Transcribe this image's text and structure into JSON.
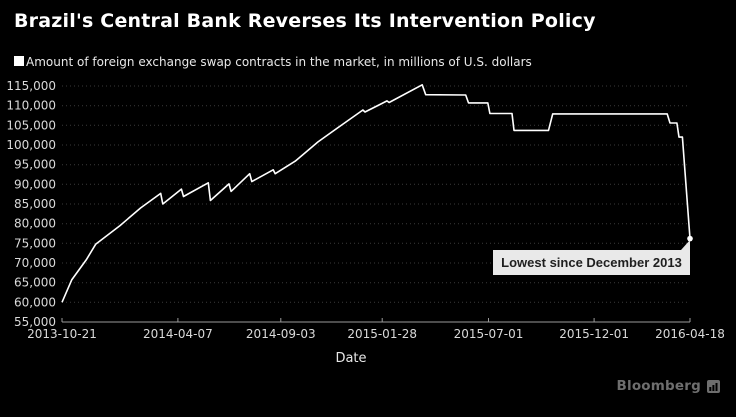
{
  "header": {
    "title": "Brazil's Central Bank Reverses Its Intervention Policy"
  },
  "footer": {
    "brand": "Bloomberg"
  },
  "chart_data": {
    "type": "line",
    "title": "Brazil's Central Bank Reverses Its Intervention Policy",
    "xlabel": "Date",
    "ylabel": "",
    "grid": true,
    "legend_position": "top-left",
    "xlim": [
      "2013-10-21",
      "2016-04-18"
    ],
    "ylim": [
      55000,
      115000
    ],
    "x_ticks": [
      "2013-10-21",
      "2014-04-07",
      "2014-09-03",
      "2015-01-28",
      "2015-07-01",
      "2015-12-01",
      "2016-04-18"
    ],
    "y_ticks": [
      55000,
      60000,
      65000,
      70000,
      75000,
      80000,
      85000,
      90000,
      95000,
      100000,
      105000,
      110000,
      115000
    ],
    "annotation": {
      "text": "Lowest since December 2013",
      "x": "2016-04-18",
      "y": 76200
    },
    "series": [
      {
        "name": "Amount of foreign exchange swap contracts in the market, in millions of U.S. dollars",
        "points": [
          [
            "2013-10-21",
            60000
          ],
          [
            "2013-11-04",
            65700
          ],
          [
            "2013-11-25",
            70800
          ],
          [
            "2013-12-09",
            74800
          ],
          [
            "2014-01-13",
            79500
          ],
          [
            "2014-02-12",
            84000
          ],
          [
            "2014-03-13",
            87700
          ],
          [
            "2014-03-16",
            85000
          ],
          [
            "2014-04-12",
            88800
          ],
          [
            "2014-04-15",
            86900
          ],
          [
            "2014-05-21",
            90400
          ],
          [
            "2014-05-24",
            85900
          ],
          [
            "2014-06-20",
            90100
          ],
          [
            "2014-06-23",
            88200
          ],
          [
            "2014-07-20",
            92700
          ],
          [
            "2014-07-23",
            90700
          ],
          [
            "2014-08-23",
            93700
          ],
          [
            "2014-08-26",
            92700
          ],
          [
            "2014-09-24",
            95900
          ],
          [
            "2014-10-27",
            100800
          ],
          [
            "2014-11-28",
            104800
          ],
          [
            "2014-12-31",
            108900
          ],
          [
            "2015-01-03",
            108400
          ],
          [
            "2015-02-04",
            111200
          ],
          [
            "2015-02-07",
            110800
          ],
          [
            "2015-03-27",
            115300
          ],
          [
            "2015-04-01",
            112800
          ],
          [
            "2015-05-29",
            112700
          ],
          [
            "2015-06-02",
            110700
          ],
          [
            "2015-06-30",
            110700
          ],
          [
            "2015-07-03",
            108000
          ],
          [
            "2015-08-04",
            108000
          ],
          [
            "2015-08-07",
            103700
          ],
          [
            "2015-09-26",
            103700
          ],
          [
            "2015-10-02",
            107900
          ],
          [
            "2016-03-16",
            107900
          ],
          [
            "2016-03-20",
            105600
          ],
          [
            "2016-03-30",
            105600
          ],
          [
            "2016-04-02",
            102000
          ],
          [
            "2016-04-07",
            102000
          ],
          [
            "2016-04-18",
            76200
          ]
        ]
      }
    ],
    "colors": {
      "background": "#000000",
      "line": "#ffffff",
      "grid": "#3a3a3a",
      "axis": "#9a9a9a",
      "tick_label": "#d9d9d9",
      "annotation_bg": "#e9e9e9",
      "annotation_text": "#1f1f1f",
      "brand": "#6e6e6e"
    }
  }
}
